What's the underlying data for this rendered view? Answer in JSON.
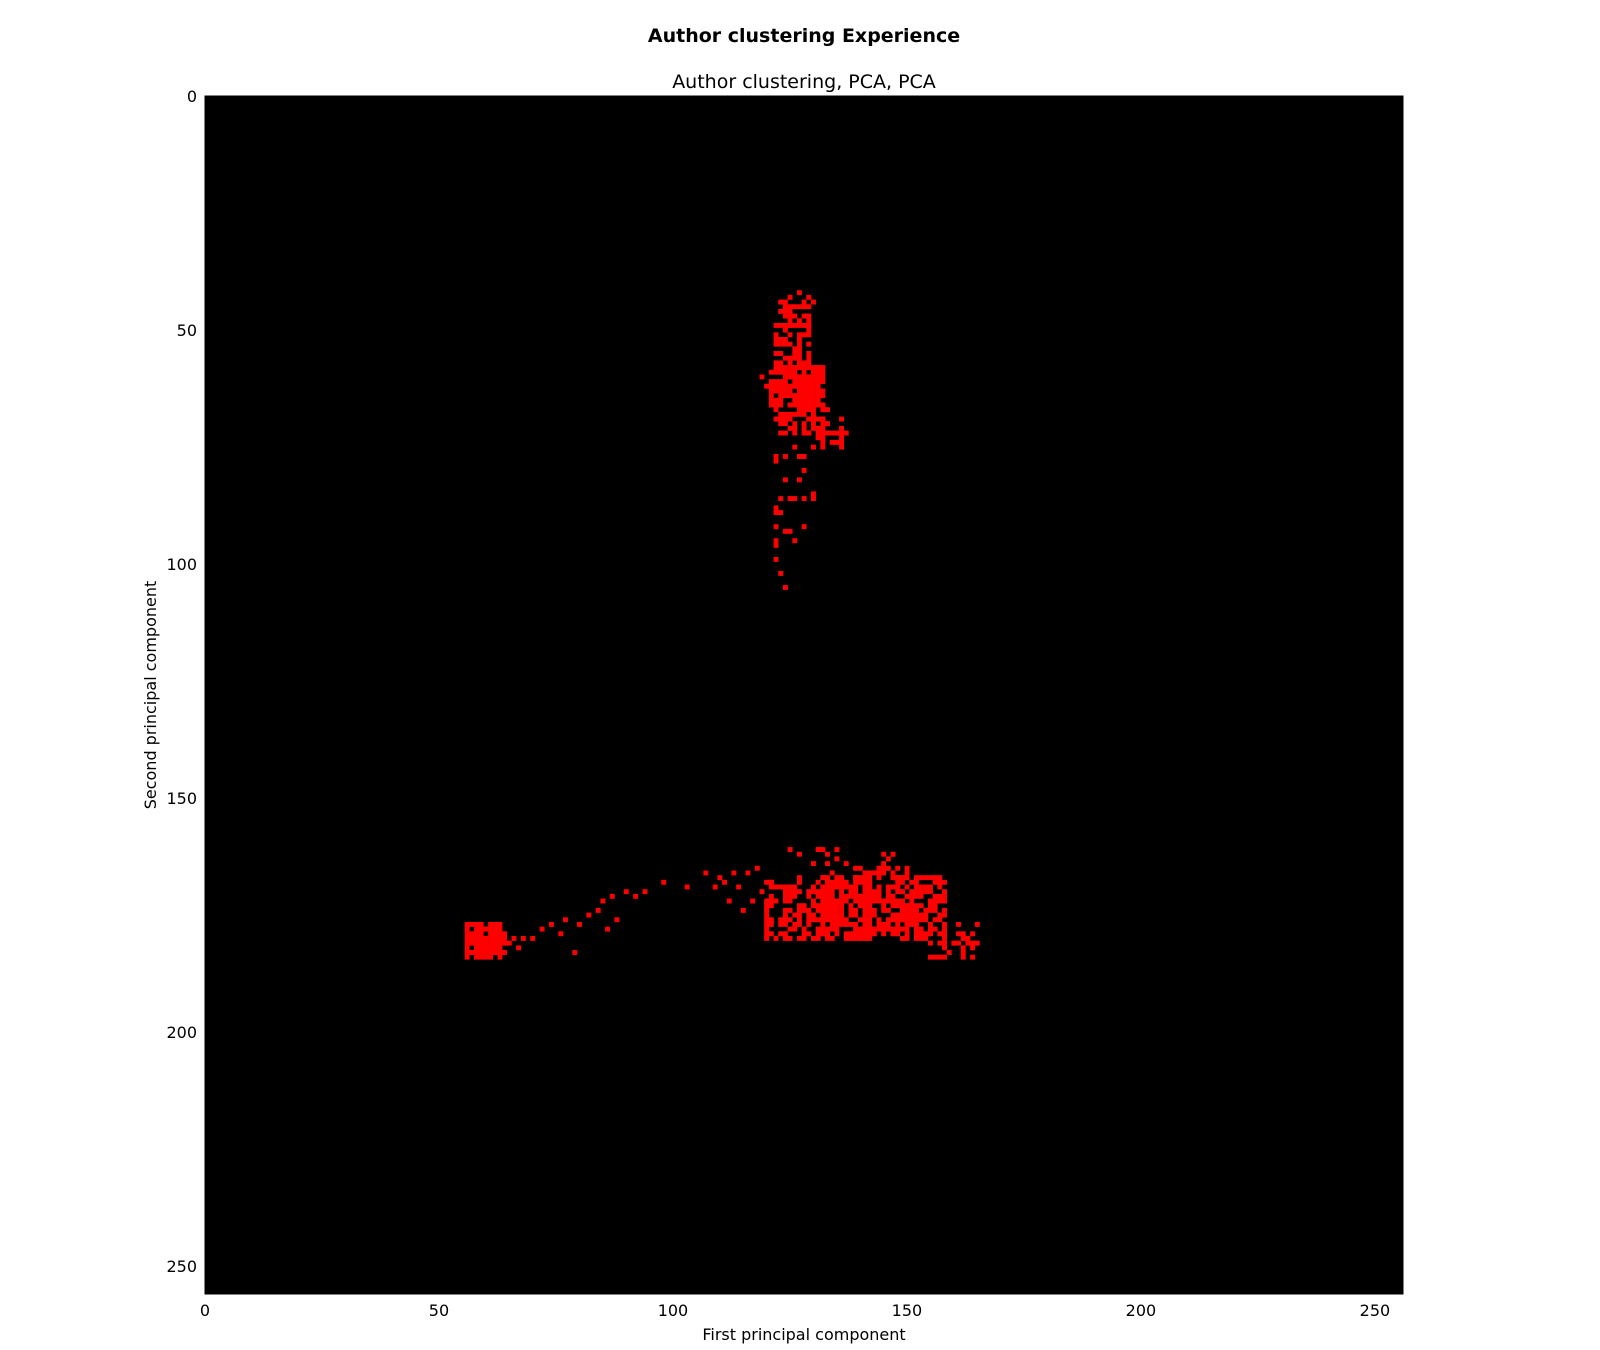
{
  "chart_data": {
    "type": "heatmap",
    "suptitle": "Author clustering Experience",
    "title": "Author clustering, PCA, PCA",
    "xlabel": "First principal component",
    "ylabel": "Second principal component",
    "xlim": [
      0,
      256
    ],
    "ylim": [
      256,
      0
    ],
    "x_ticks": [
      0,
      50,
      100,
      150,
      200,
      250
    ],
    "y_ticks": [
      0,
      50,
      100,
      150,
      200,
      250
    ],
    "x_tick_labels": [
      "0",
      "50",
      "100",
      "150",
      "200",
      "250"
    ],
    "y_tick_labels": [
      "0",
      "50",
      "100",
      "150",
      "200",
      "250"
    ],
    "background_color": "#000000",
    "point_color": "#ff0000",
    "grid": false,
    "clusters": [
      {
        "dense_regions": [
          {
            "x": [
              123,
              130
            ],
            "y": [
              43,
              49
            ],
            "density": 0.55
          },
          {
            "x": [
              122,
              129
            ],
            "y": [
              49,
              58
            ],
            "density": 0.6
          },
          {
            "x": [
              121,
              132
            ],
            "y": [
              58,
              66
            ],
            "density": 0.85
          },
          {
            "x": [
              122,
              133
            ],
            "y": [
              66,
              72
            ],
            "density": 0.5
          },
          {
            "x": [
              129,
              137
            ],
            "y": [
              69,
              75
            ],
            "density": 0.25
          },
          {
            "x": [
              122,
              130
            ],
            "y": [
              75,
              105
            ],
            "density": 0.12
          }
        ],
        "points": [
          [
            127,
            42
          ],
          [
            119,
            60
          ],
          [
            120,
            62
          ],
          [
            136,
            74
          ]
        ]
      },
      {
        "dense_regions": [
          {
            "x": [
              56,
              63
            ],
            "y": [
              177,
              184
            ],
            "density": 0.9
          },
          {
            "x": [
              62,
              68
            ],
            "y": [
              179,
              183
            ],
            "density": 0.4
          },
          {
            "x": [
              120,
              132
            ],
            "y": [
              168,
              180
            ],
            "density": 0.55
          },
          {
            "x": [
              132,
              142
            ],
            "y": [
              167,
              180
            ],
            "density": 0.8
          },
          {
            "x": [
              142,
              150
            ],
            "y": [
              165,
              179
            ],
            "density": 0.55
          },
          {
            "x": [
              148,
              158
            ],
            "y": [
              167,
              180
            ],
            "density": 0.65
          },
          {
            "x": [
              155,
              165
            ],
            "y": [
              177,
              184
            ],
            "density": 0.35
          },
          {
            "x": [
              125,
              148
            ],
            "y": [
              161,
              167
            ],
            "density": 0.12
          }
        ],
        "points": [
          [
            70,
            180
          ],
          [
            72,
            178
          ],
          [
            74,
            177
          ],
          [
            76,
            179
          ],
          [
            79,
            183
          ],
          [
            77,
            176
          ],
          [
            80,
            177
          ],
          [
            82,
            175
          ],
          [
            84,
            174
          ],
          [
            86,
            178
          ],
          [
            85,
            172
          ],
          [
            87,
            171
          ],
          [
            88,
            176
          ],
          [
            90,
            170
          ],
          [
            92,
            171
          ],
          [
            94,
            170
          ],
          [
            98,
            168
          ],
          [
            103,
            169
          ],
          [
            107,
            166
          ],
          [
            109,
            169
          ],
          [
            110,
            167
          ],
          [
            111,
            168
          ],
          [
            112,
            172
          ],
          [
            113,
            166
          ],
          [
            114,
            169
          ],
          [
            115,
            174
          ],
          [
            116,
            166
          ],
          [
            117,
            172
          ],
          [
            118,
            165
          ],
          [
            119,
            170
          ],
          [
            120,
            174
          ],
          [
            121,
            168
          ],
          [
            125,
            161
          ]
        ]
      }
    ]
  }
}
